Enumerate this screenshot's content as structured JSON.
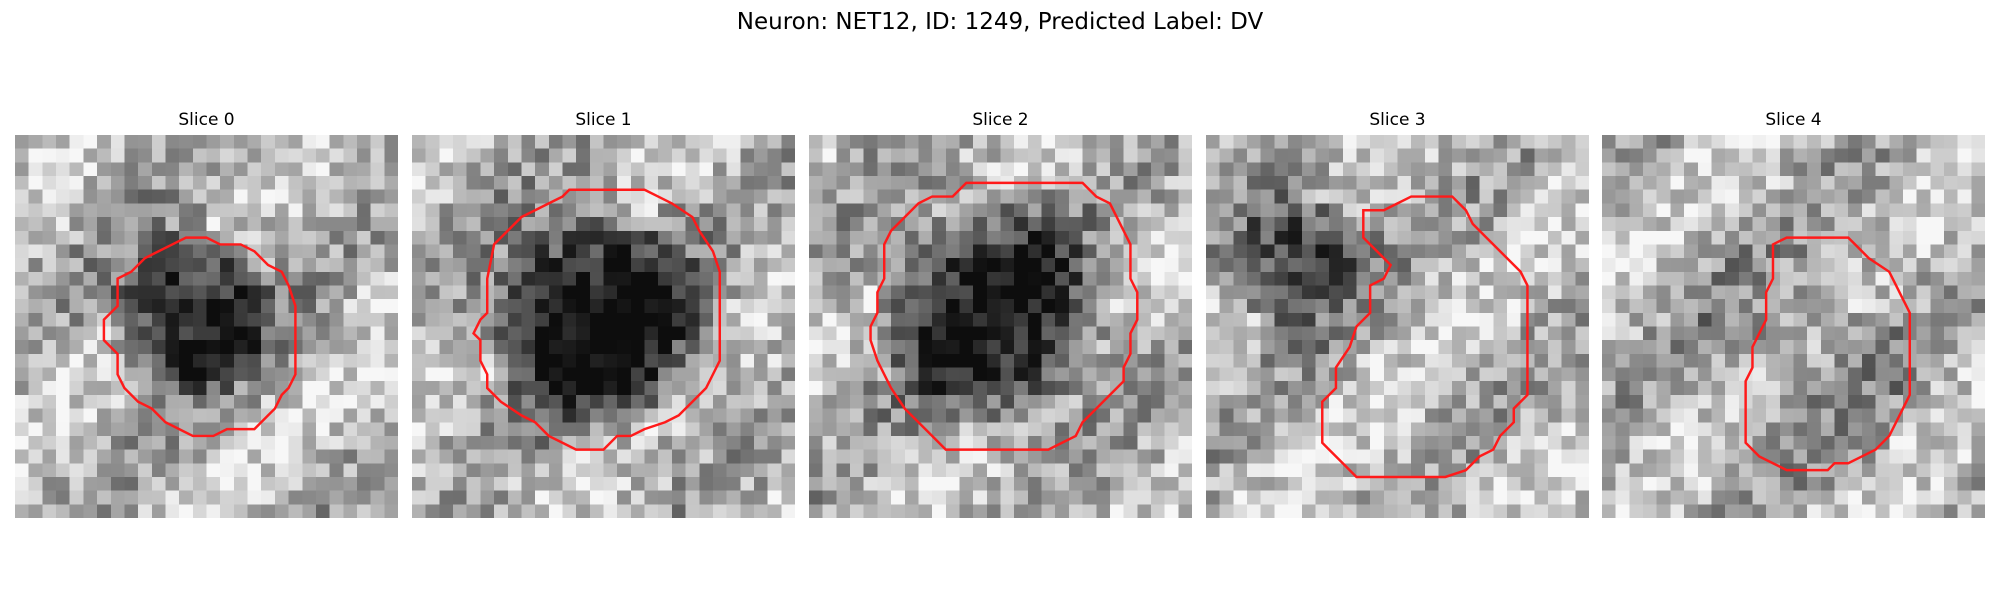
{
  "figure": {
    "title": "Neuron: NET12, ID: 1249, Predicted Label: DV"
  },
  "panels": [
    {
      "title": "Slice 0",
      "image": {
        "grid_size": 28,
        "pattern": "grayscale-noise",
        "blob": {
          "center": [
            13.0,
            13.0
          ],
          "radius": 6.8,
          "darkness": 0.65
        },
        "seed": 11
      },
      "contour_color": "#ff1a1a"
    },
    {
      "title": "Slice 1",
      "image": {
        "grid_size": 28,
        "pattern": "grayscale-noise",
        "blob": {
          "center": [
            13.5,
            13.5
          ],
          "radius": 9.0,
          "darkness": 0.7
        },
        "seed": 23
      },
      "contour_color": "#ff1a1a"
    },
    {
      "title": "Slice 2",
      "image": {
        "grid_size": 28,
        "pattern": "grayscale-noise",
        "blob": {
          "center": [
            13.5,
            13.0
          ],
          "radius": 9.3,
          "darkness": 0.6
        },
        "seed": 37
      },
      "contour_color": "#ff1a1a"
    },
    {
      "title": "Slice 3",
      "image": {
        "grid_size": 28,
        "pattern": "grayscale-noise",
        "blob": {
          "center": [
            6.5,
            9.0
          ],
          "radius": 5.5,
          "darkness": 0.55
        },
        "seed": 51
      },
      "contour_color": "#ff1a1a"
    },
    {
      "title": "Slice 4",
      "image": {
        "grid_size": 28,
        "pattern": "grayscale-noise",
        "blob": {
          "center": [
            14.5,
            16.0
          ],
          "radius": 7.0,
          "darkness": 0.15
        },
        "seed": 73
      },
      "contour_color": "#ff1a1a"
    }
  ]
}
